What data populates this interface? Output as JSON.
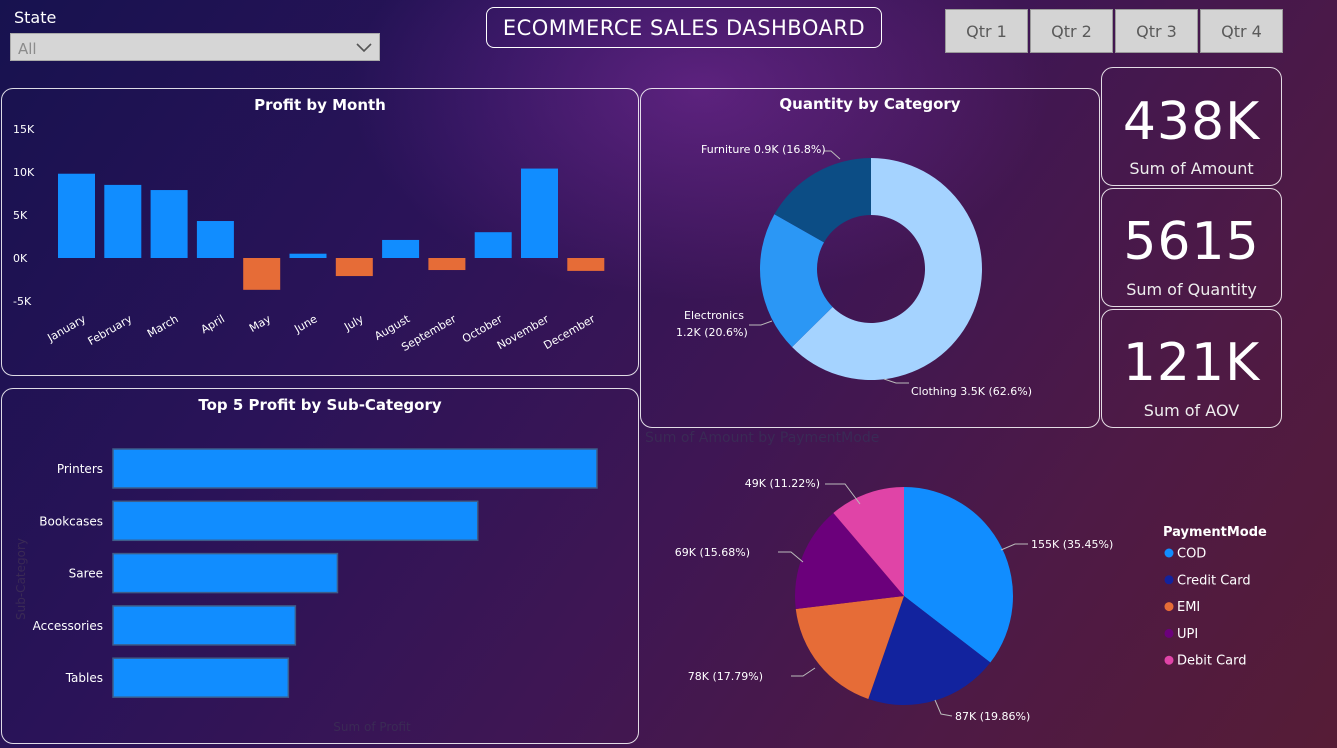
{
  "header": {
    "state_label": "State",
    "state_value": "All",
    "title": "ECOMMERCE SALES DASHBOARD",
    "quarters": [
      "Qtr 1",
      "Qtr 2",
      "Qtr 3",
      "Qtr 4"
    ]
  },
  "kpis": [
    {
      "value": "438K",
      "label": "Sum of Amount"
    },
    {
      "value": "5615",
      "label": "Sum of Quantity"
    },
    {
      "value": "121K",
      "label": "Sum of AOV"
    }
  ],
  "colors": {
    "positive": "#118dff",
    "negative": "#e66c37"
  },
  "chart_data": [
    {
      "id": "profit-by-month",
      "type": "bar",
      "title": "Profit by Month",
      "categories": [
        "January",
        "February",
        "March",
        "April",
        "May",
        "June",
        "July",
        "August",
        "September",
        "October",
        "November",
        "December"
      ],
      "values": [
        9800,
        8500,
        7900,
        4300,
        -3700,
        500,
        -2100,
        2100,
        -1400,
        3000,
        10400,
        -1500
      ],
      "ylim": [
        -5000,
        15000
      ],
      "yticks": [
        15000,
        10000,
        5000,
        0,
        -5000
      ],
      "ytick_labels": [
        "15K",
        "10K",
        "5K",
        "0K",
        "-5K"
      ]
    },
    {
      "id": "quantity-by-category",
      "type": "pie",
      "donut": true,
      "title": "Quantity by Category",
      "labels": [
        "Clothing",
        "Electronics",
        "Furniture"
      ],
      "values": [
        62.6,
        20.6,
        16.8
      ],
      "data_labels": [
        "Clothing 3.5K (62.6%)",
        "Electronics 1.2K (20.6%)",
        "Furniture 0.9K (16.8%)"
      ],
      "colors": [
        "#a5d3ff",
        "#2b97f5",
        "#0c4d85"
      ]
    },
    {
      "id": "top5-profit-subcategory",
      "type": "bar",
      "orientation": "horizontal",
      "title": "Top 5 Profit by Sub-Category",
      "xlabel": "Sum of Profit",
      "ylabel": "Sub-Category",
      "categories": [
        "Printers",
        "Bookcases",
        "Saree",
        "Accessories",
        "Tables"
      ],
      "values": [
        6900,
        5200,
        3200,
        2600,
        2500
      ]
    },
    {
      "id": "amount-by-paymentmode",
      "type": "pie",
      "title": "Sum of Amount by PaymentMode",
      "legend_title": "PaymentMode",
      "labels": [
        "COD",
        "Credit Card",
        "EMI",
        "UPI",
        "Debit Card"
      ],
      "legend_order": [
        "COD",
        "Credit Card",
        "EMI",
        "UPI",
        "Debit Card"
      ],
      "slice_order": [
        "COD",
        "Credit Card",
        "EMI",
        "UPI",
        "Debit Card"
      ],
      "values": [
        35.45,
        19.86,
        17.79,
        15.68,
        11.22
      ],
      "data_labels": [
        "155K (35.45%)",
        "87K (19.86%)",
        "78K (17.79%)",
        "69K (15.68%)",
        "49K (11.22%)"
      ],
      "colors": [
        "#118dff",
        "#12239e",
        "#e66c37",
        "#6b007b",
        "#e044a7"
      ],
      "legend": "right"
    }
  ]
}
